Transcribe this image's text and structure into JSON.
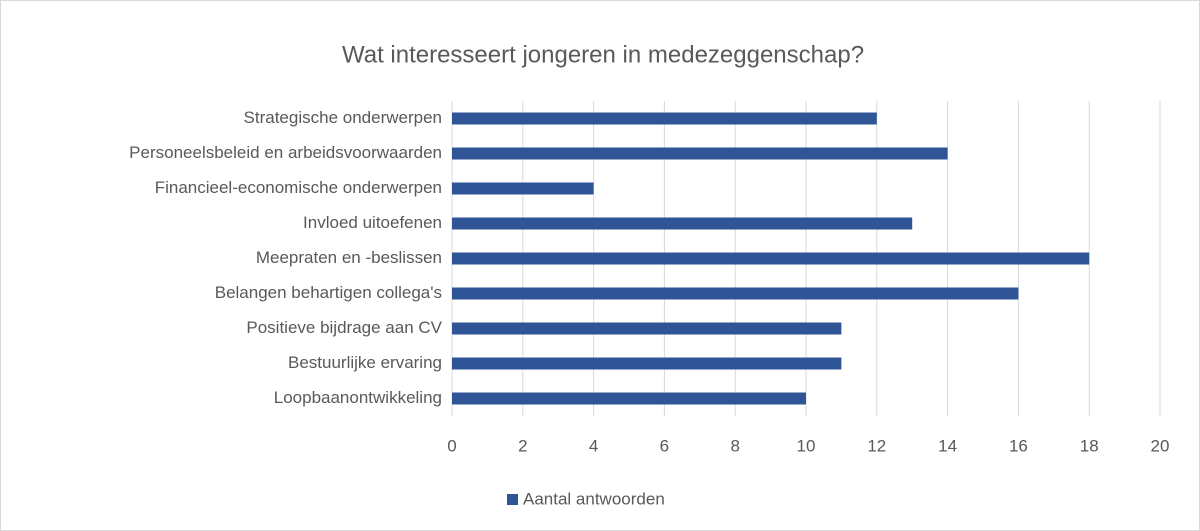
{
  "chart_data": {
    "type": "bar",
    "orientation": "horizontal",
    "title": "Wat interesseert jongeren in medezeggenschap?",
    "categories": [
      "Strategische onderwerpen",
      "Personeelsbeleid en arbeidsvoorwaarden",
      "Financieel-economische onderwerpen",
      "Invloed uitoefenen",
      "Meepraten en -beslissen",
      "Belangen behartigen collega's",
      "Positieve bijdrage aan CV",
      "Bestuurlijke ervaring",
      "Loopbaanontwikkeling"
    ],
    "series": [
      {
        "name": "Aantal antwoorden",
        "color": "#2f5597",
        "values": [
          12,
          14,
          4,
          13,
          18,
          16,
          11,
          11,
          10
        ]
      }
    ],
    "xlim": [
      0,
      20
    ],
    "xticks": [
      0,
      2,
      4,
      6,
      8,
      10,
      12,
      14,
      16,
      18,
      20
    ],
    "grid": true,
    "legend": "bottom"
  }
}
